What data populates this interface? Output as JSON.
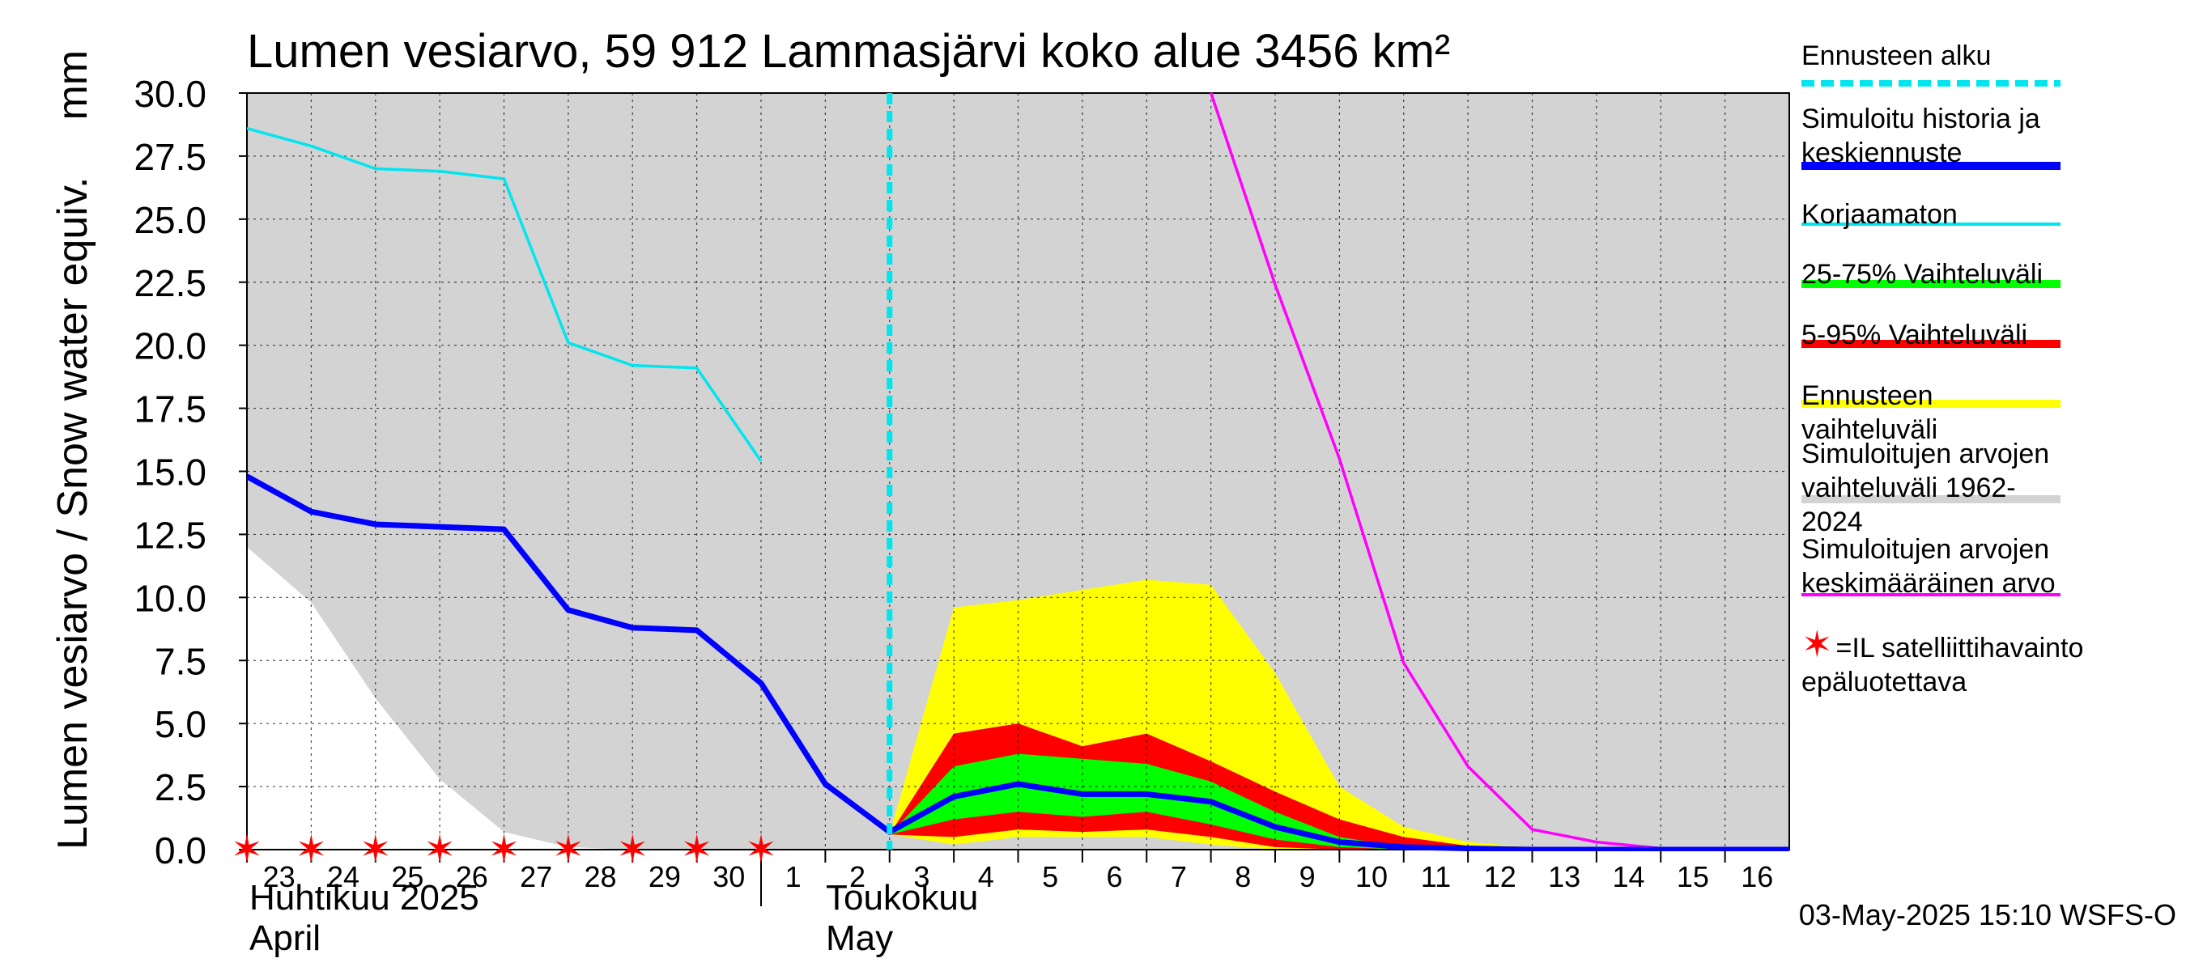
{
  "chart_data": {
    "type": "area",
    "title": "Lumen vesiarvo, 59 912 Lammasjärvi koko alue 3456 km²",
    "ylabel": "Lumen vesiarvo / Snow water equiv.",
    "yunit": "mm",
    "ylim": [
      0,
      30
    ],
    "yticks": [
      "0.0",
      "2.5",
      "5.0",
      "7.5",
      "10.0",
      "12.5",
      "15.0",
      "17.5",
      "20.0",
      "22.5",
      "25.0",
      "27.5",
      "30.0"
    ],
    "x": [
      "2025-04-23",
      "2025-04-24",
      "2025-04-25",
      "2025-04-26",
      "2025-04-27",
      "2025-04-28",
      "2025-04-29",
      "2025-04-30",
      "2025-05-01",
      "2025-05-02",
      "2025-05-03",
      "2025-05-04",
      "2025-05-05",
      "2025-05-06",
      "2025-05-07",
      "2025-05-08",
      "2025-05-09",
      "2025-05-10",
      "2025-05-11",
      "2025-05-12",
      "2025-05-13",
      "2025-05-14",
      "2025-05-15",
      "2025-05-16"
    ],
    "xticks": [
      "23",
      "24",
      "25",
      "26",
      "27",
      "28",
      "29",
      "30",
      "1",
      "2",
      "3",
      "4",
      "5",
      "6",
      "7",
      "8",
      "9",
      "10",
      "11",
      "12",
      "13",
      "14",
      "15",
      "16"
    ],
    "month_labels": [
      {
        "fi": "Huhtikuu  2025",
        "en": "April"
      },
      {
        "fi": "Toukokuu",
        "en": "May"
      }
    ],
    "forecast_start": "2025-05-03",
    "grid": true,
    "legend_placement": "right",
    "series": [
      {
        "name": "Simuloitujen arvojen vaihteluväli 1962-2024",
        "kind": "band",
        "color": "#d3d3d3",
        "low": [
          12.0,
          9.8,
          6.0,
          2.8,
          0.7,
          0.1,
          0,
          0,
          0,
          0,
          0,
          0,
          0,
          0,
          0,
          0,
          0,
          0,
          0,
          0,
          0,
          0,
          0,
          0
        ],
        "high": [
          30,
          30,
          30,
          30,
          30,
          30,
          30,
          30,
          30,
          30,
          30,
          30,
          30,
          30,
          30,
          30,
          30,
          30,
          30,
          30,
          30,
          30,
          30,
          30
        ]
      },
      {
        "name": "Ennusteen vaihteluväli",
        "kind": "band",
        "color": "#ffff00",
        "low": [
          null,
          null,
          null,
          null,
          null,
          null,
          null,
          null,
          null,
          null,
          0.6,
          0.2,
          0.5,
          0.5,
          0.5,
          0.2,
          0.0,
          0.0,
          0.0,
          0.0,
          0.0,
          0.0,
          0.0,
          0.0
        ],
        "high": [
          null,
          null,
          null,
          null,
          null,
          null,
          null,
          null,
          null,
          null,
          0.6,
          9.6,
          9.9,
          10.3,
          10.7,
          10.5,
          7.0,
          2.5,
          0.9,
          0.3,
          0.1,
          0.05,
          0.0,
          0.0
        ]
      },
      {
        "name": "5-95% Vaihteluväli",
        "kind": "band",
        "color": "#ff0000",
        "low": [
          null,
          null,
          null,
          null,
          null,
          null,
          null,
          null,
          null,
          null,
          0.6,
          0.5,
          0.8,
          0.7,
          0.8,
          0.5,
          0.1,
          0.0,
          0.0,
          0.0,
          0.0,
          0.0,
          0.0,
          0.0
        ],
        "high": [
          null,
          null,
          null,
          null,
          null,
          null,
          null,
          null,
          null,
          null,
          0.6,
          4.6,
          5.0,
          4.1,
          4.6,
          3.5,
          2.3,
          1.2,
          0.5,
          0.15,
          0.05,
          0.0,
          0.0,
          0.0
        ]
      },
      {
        "name": "25-75% Vaihteluväli",
        "kind": "band",
        "color": "#00ff00",
        "low": [
          null,
          null,
          null,
          null,
          null,
          null,
          null,
          null,
          null,
          null,
          0.6,
          1.2,
          1.5,
          1.3,
          1.5,
          1.0,
          0.4,
          0.1,
          0.0,
          0.0,
          0.0,
          0.0,
          0.0,
          0.0
        ],
        "high": [
          null,
          null,
          null,
          null,
          null,
          null,
          null,
          null,
          null,
          null,
          0.6,
          3.3,
          3.8,
          3.6,
          3.4,
          2.7,
          1.5,
          0.5,
          0.1,
          0.0,
          0.0,
          0.0,
          0.0,
          0.0
        ]
      },
      {
        "name": "Korjaamaton",
        "kind": "line",
        "color": "#00e5ee",
        "values": [
          28.6,
          27.9,
          27.0,
          26.9,
          26.6,
          20.1,
          19.2,
          19.1,
          15.4,
          null,
          null,
          null,
          null,
          null,
          null,
          null,
          null,
          null,
          null,
          null,
          null,
          null,
          null,
          null
        ]
      },
      {
        "name": "Simuloitujen arvojen keskimääräinen arvo",
        "kind": "line",
        "color": "#ff00ff",
        "values": [
          null,
          null,
          null,
          null,
          null,
          null,
          null,
          null,
          null,
          null,
          null,
          null,
          null,
          null,
          null,
          30.6,
          22.4,
          15.5,
          7.4,
          3.3,
          0.8,
          0.3,
          0.05,
          0.0
        ]
      },
      {
        "name": "Simuloitu historia ja keskiennuste",
        "kind": "line",
        "color": "#0000ff",
        "values": [
          14.8,
          13.4,
          12.9,
          12.8,
          12.7,
          9.5,
          8.8,
          8.7,
          6.6,
          2.6,
          0.7,
          2.1,
          2.6,
          2.2,
          2.2,
          1.9,
          0.9,
          0.3,
          0.1,
          0.05,
          0.0,
          0.0,
          0.0,
          0.0
        ]
      }
    ],
    "satellite_obs_days": [
      "23",
      "24",
      "25",
      "26",
      "27",
      "28",
      "29",
      "30",
      "1"
    ]
  },
  "legend": [
    {
      "label": "Ennusteen alku",
      "color": "#00e5ee",
      "style": "dashed"
    },
    {
      "label": "Simuloitu historia ja\nkeskiennuste",
      "color": "#0000ff",
      "style": "solid-thick"
    },
    {
      "label": "Korjaamaton",
      "color": "#00e5ee",
      "style": "solid"
    },
    {
      "label": "25-75% Vaihteluväli",
      "color": "#00ff00",
      "style": "solid-thick"
    },
    {
      "label": "5-95% Vaihteluväli",
      "color": "#ff0000",
      "style": "solid-thick"
    },
    {
      "label": "Ennusteen vaihteluväli",
      "color": "#ffff00",
      "style": "solid-thick"
    },
    {
      "label": "Simuloitujen arvojen\nvaihteluväli 1962-2024",
      "color": "#d3d3d3",
      "style": "solid-thick"
    },
    {
      "label": "Simuloitujen arvojen\nkeskimääräinen arvo",
      "color": "#ff00ff",
      "style": "solid"
    }
  ],
  "note": {
    "symbol": "✶",
    "text": "=IL satelliittihavainto\nepäluotettava"
  },
  "footer": "03-May-2025 15:10 WSFS-O"
}
